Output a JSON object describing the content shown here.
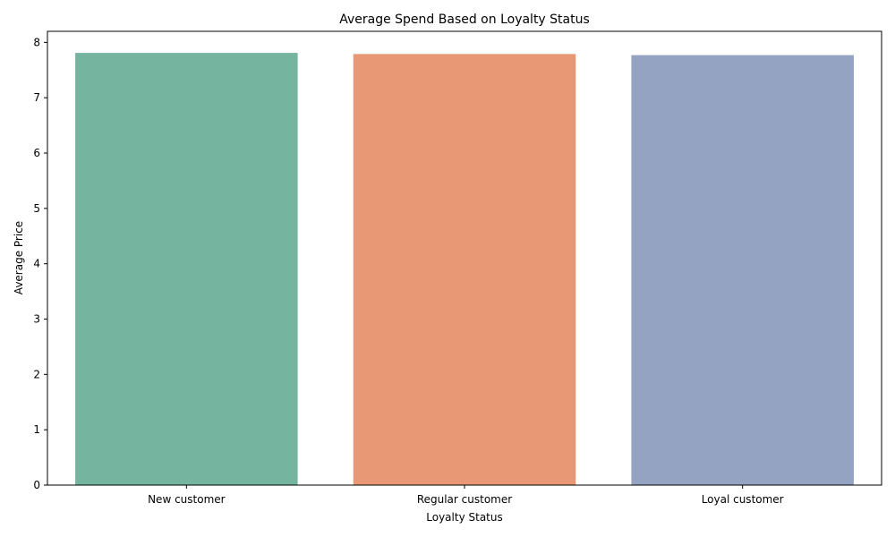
{
  "chart_data": {
    "type": "bar",
    "title": "Average Spend Based on Loyalty Status",
    "xlabel": "Loyalty Status",
    "ylabel": "Average Price",
    "categories": [
      "New customer",
      "Regular customer",
      "Loyal customer"
    ],
    "values": [
      7.81,
      7.79,
      7.77
    ],
    "colors": [
      "#75b5a0",
      "#e89875",
      "#94a3c2"
    ],
    "ylim": [
      0,
      8.2
    ],
    "yticks": [
      0,
      1,
      2,
      3,
      4,
      5,
      6,
      7,
      8
    ],
    "grid": false,
    "legend": "none"
  }
}
